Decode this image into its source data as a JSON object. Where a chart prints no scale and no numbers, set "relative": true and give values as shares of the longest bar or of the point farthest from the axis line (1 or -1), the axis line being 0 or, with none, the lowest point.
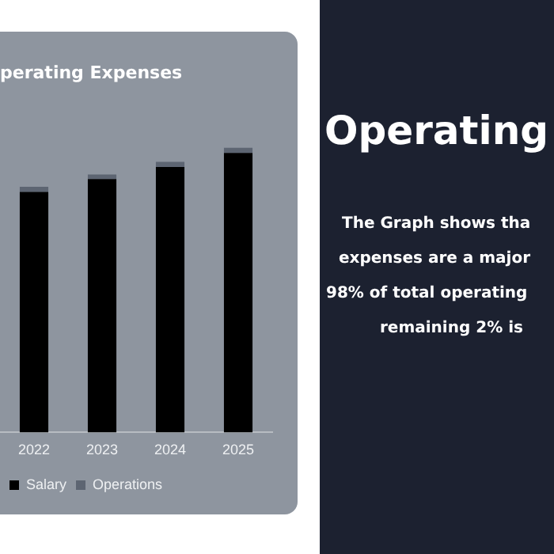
{
  "chart_data": {
    "type": "bar",
    "title": "perating Expenses",
    "categories": [
      "2022",
      "2023",
      "2024",
      "2025"
    ],
    "relative": true,
    "stacked": true,
    "legend": "bottom",
    "series": [
      {
        "name": "Salary",
        "color": "#000000",
        "values": [
          0.844,
          0.889,
          0.932,
          0.981
        ]
      },
      {
        "name": "Operations",
        "color": "#5d6572",
        "values": [
          0.018,
          0.016,
          0.018,
          0.019
        ]
      }
    ],
    "annotations": [
      "Operating",
      "The Graph shows tha",
      "expenses are a major",
      "98% of total operating",
      "remaining 2% is"
    ]
  }
}
